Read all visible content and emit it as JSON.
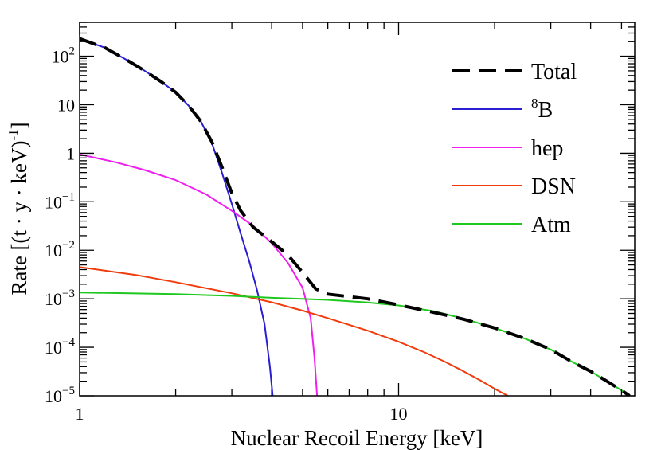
{
  "chart_data": {
    "type": "line",
    "xscale": "log",
    "yscale": "log",
    "xlabel": "Nuclear Recoil Energy [keV]",
    "ylabel": "Rate [(t · y · keV)",
    "ylabel_exponent": "-1",
    "xlim": [
      1,
      55
    ],
    "ylim": [
      1e-05,
      500
    ],
    "x_tick_labels": [
      {
        "value": 1,
        "label": "1"
      },
      {
        "value": 10,
        "label": "10"
      }
    ],
    "y_tick_labels": [
      {
        "value": 1e-05,
        "base": "10",
        "exp": "−5"
      },
      {
        "value": 0.0001,
        "base": "10",
        "exp": "−4"
      },
      {
        "value": 0.001,
        "base": "10",
        "exp": "−3"
      },
      {
        "value": 0.01,
        "base": "10",
        "exp": "−2"
      },
      {
        "value": 0.1,
        "base": "10",
        "exp": "−1"
      },
      {
        "value": 1,
        "base": "1",
        "exp": ""
      },
      {
        "value": 10,
        "base": "10",
        "exp": ""
      },
      {
        "value": 100,
        "base": "10",
        "exp": "2"
      }
    ],
    "legend_position": "top-right",
    "series": [
      {
        "name": "Total",
        "label_base": "Total",
        "label_sup": "",
        "color": "#000000",
        "dashed": true,
        "points": [
          [
            1,
            230
          ],
          [
            1.2,
            150
          ],
          [
            1.4,
            85
          ],
          [
            1.6,
            50
          ],
          [
            1.8,
            30
          ],
          [
            2.0,
            18
          ],
          [
            2.2,
            9.5
          ],
          [
            2.4,
            4.5
          ],
          [
            2.6,
            1.7
          ],
          [
            2.8,
            0.5
          ],
          [
            3.0,
            0.15
          ],
          [
            3.2,
            0.065
          ],
          [
            3.5,
            0.03
          ],
          [
            4.0,
            0.015
          ],
          [
            4.5,
            0.008
          ],
          [
            5.0,
            0.0035
          ],
          [
            5.5,
            0.0016
          ],
          [
            6.0,
            0.00125
          ],
          [
            8,
            0.001
          ],
          [
            10,
            0.00075
          ],
          [
            13,
            0.00052
          ],
          [
            16,
            0.00038
          ],
          [
            20,
            0.00025
          ],
          [
            25,
            0.00015
          ],
          [
            30,
            9e-05
          ],
          [
            35,
            5e-05
          ],
          [
            40,
            3.2e-05
          ],
          [
            45,
            2e-05
          ],
          [
            50,
            1.3e-05
          ],
          [
            53,
            1e-05
          ]
        ]
      },
      {
        "name": "8B",
        "label_base": "B",
        "label_sup": "8",
        "color": "#2a1ed2",
        "dashed": false,
        "points": [
          [
            1,
            230
          ],
          [
            1.2,
            150
          ],
          [
            1.4,
            85
          ],
          [
            1.6,
            50
          ],
          [
            1.8,
            30
          ],
          [
            2.0,
            18
          ],
          [
            2.2,
            9.5
          ],
          [
            2.4,
            4.5
          ],
          [
            2.6,
            1.6
          ],
          [
            2.8,
            0.38
          ],
          [
            3.0,
            0.09
          ],
          [
            3.2,
            0.022
          ],
          [
            3.4,
            0.006
          ],
          [
            3.6,
            0.0015
          ],
          [
            3.8,
            0.0003
          ],
          [
            3.95,
            4e-05
          ],
          [
            4.03,
            1e-05
          ]
        ]
      },
      {
        "name": "hep",
        "label_base": "hep",
        "label_sup": "",
        "color": "#f01eef",
        "dashed": false,
        "points": [
          [
            1,
            0.95
          ],
          [
            1.3,
            0.65
          ],
          [
            1.6,
            0.45
          ],
          [
            2.0,
            0.28
          ],
          [
            2.5,
            0.14
          ],
          [
            3.0,
            0.065
          ],
          [
            3.5,
            0.032
          ],
          [
            4.0,
            0.014
          ],
          [
            4.5,
            0.0055
          ],
          [
            5.0,
            0.0017
          ],
          [
            5.3,
            0.0004
          ],
          [
            5.45,
            6e-05
          ],
          [
            5.55,
            1e-05
          ]
        ]
      },
      {
        "name": "DSN",
        "label_base": "DSN",
        "label_sup": "",
        "color": "#f03c0c",
        "dashed": false,
        "points": [
          [
            1,
            0.0045
          ],
          [
            1.5,
            0.0031
          ],
          [
            2,
            0.0022
          ],
          [
            3,
            0.0013
          ],
          [
            4,
            0.00085
          ],
          [
            5,
            0.00057
          ],
          [
            6,
            0.0004
          ],
          [
            8,
            0.00022
          ],
          [
            10,
            0.00013
          ],
          [
            12,
            8e-05
          ],
          [
            14,
            5e-05
          ],
          [
            16,
            3.2e-05
          ],
          [
            18,
            2.1e-05
          ],
          [
            20,
            1.4e-05
          ],
          [
            22,
            1e-05
          ]
        ]
      },
      {
        "name": "Atm",
        "label_base": "Atm",
        "label_sup": "",
        "color": "#1ec81e",
        "dashed": false,
        "points": [
          [
            1,
            0.00135
          ],
          [
            2,
            0.00125
          ],
          [
            3,
            0.00115
          ],
          [
            4,
            0.00105
          ],
          [
            6,
            0.00095
          ],
          [
            8,
            0.00084
          ],
          [
            10,
            0.00073
          ],
          [
            13,
            0.00055
          ],
          [
            16,
            0.00039
          ],
          [
            20,
            0.00025
          ],
          [
            25,
            0.00015
          ],
          [
            30,
            9e-05
          ],
          [
            35,
            5e-05
          ],
          [
            40,
            3.2e-05
          ],
          [
            45,
            2e-05
          ],
          [
            50,
            1.3e-05
          ],
          [
            53,
            1e-05
          ]
        ]
      }
    ]
  }
}
